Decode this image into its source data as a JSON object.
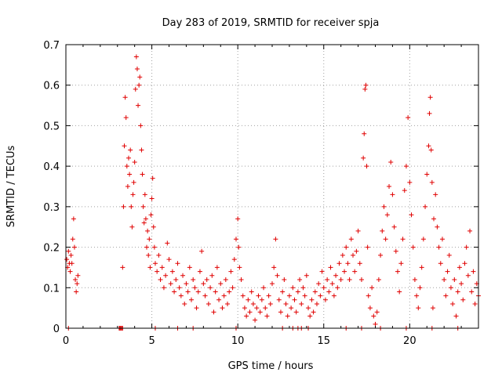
{
  "chart_data": {
    "type": "scatter",
    "title": "Day 283 of 2019, SRMTID for receiver spja",
    "xlabel": "GPS time / hours",
    "ylabel": "SRMTID / TECUs",
    "xlim": [
      0,
      24
    ],
    "ylim": [
      0,
      0.7
    ],
    "x_ticks": [
      0,
      5,
      10,
      15,
      20
    ],
    "x_tick_labels": [
      "0",
      "5",
      "10",
      "15",
      "20"
    ],
    "y_ticks": [
      0,
      0.1,
      0.2,
      0.3,
      0.4,
      0.5,
      0.6,
      0.7
    ],
    "y_tick_labels": [
      "0",
      "0.1",
      "0.2",
      "0.3",
      "0.4",
      "0.5",
      "0.6",
      "0.7"
    ],
    "grid": true,
    "marker": "+",
    "color": "#e00000",
    "series": [
      {
        "name": "SRMTID",
        "points": [
          [
            0.05,
            0.17
          ],
          [
            0.1,
            0.15
          ],
          [
            0.15,
            0.19
          ],
          [
            0.2,
            0.16
          ],
          [
            0.25,
            0.14
          ],
          [
            0.3,
            0.18
          ],
          [
            0.35,
            0.16
          ],
          [
            0.4,
            0.22
          ],
          [
            0.45,
            0.27
          ],
          [
            0.5,
            0.2
          ],
          [
            0.55,
            0.12
          ],
          [
            0.6,
            0.09
          ],
          [
            0.65,
            0.11
          ],
          [
            0.7,
            0.13
          ],
          [
            0.15,
            0
          ],
          [
            3.1,
            0
          ],
          [
            3.15,
            0
          ],
          [
            3.2,
            0
          ],
          [
            3.25,
            0
          ],
          [
            3.3,
            0
          ],
          [
            3.3,
            0.15
          ],
          [
            3.35,
            0.3
          ],
          [
            3.4,
            0.45
          ],
          [
            3.45,
            0.57
          ],
          [
            3.5,
            0.52
          ],
          [
            3.55,
            0.4
          ],
          [
            3.6,
            0.35
          ],
          [
            3.65,
            0.42
          ],
          [
            3.7,
            0.38
          ],
          [
            3.75,
            0.44
          ],
          [
            3.8,
            0.3
          ],
          [
            3.85,
            0.25
          ],
          [
            3.9,
            0.33
          ],
          [
            3.95,
            0.36
          ],
          [
            4.0,
            0.41
          ],
          [
            4.05,
            0.59
          ],
          [
            4.1,
            0.67
          ],
          [
            4.15,
            0.64
          ],
          [
            4.2,
            0.55
          ],
          [
            4.25,
            0.6
          ],
          [
            4.3,
            0.62
          ],
          [
            4.35,
            0.5
          ],
          [
            4.4,
            0.44
          ],
          [
            4.45,
            0.38
          ],
          [
            4.5,
            0.3
          ],
          [
            4.55,
            0.26
          ],
          [
            4.6,
            0.33
          ],
          [
            4.65,
            0.27
          ],
          [
            4.7,
            0.2
          ],
          [
            4.75,
            0.24
          ],
          [
            4.8,
            0.18
          ],
          [
            4.85,
            0.22
          ],
          [
            4.9,
            0.15
          ],
          [
            4.95,
            0.28
          ],
          [
            5.0,
            0.32
          ],
          [
            5.05,
            0.37
          ],
          [
            5.1,
            0.25
          ],
          [
            5.15,
            0.2
          ],
          [
            5.2,
            0.16
          ],
          [
            5.3,
            0.14
          ],
          [
            5.4,
            0.18
          ],
          [
            5.5,
            0.12
          ],
          [
            5.6,
            0.15
          ],
          [
            5.7,
            0.1
          ],
          [
            5.8,
            0.13
          ],
          [
            5.9,
            0.21
          ],
          [
            6.0,
            0.17
          ],
          [
            6.1,
            0.11
          ],
          [
            6.2,
            0.14
          ],
          [
            6.3,
            0.09
          ],
          [
            6.4,
            0.12
          ],
          [
            6.5,
            0.16
          ],
          [
            6.6,
            0.1
          ],
          [
            6.7,
            0.08
          ],
          [
            6.8,
            0.13
          ],
          [
            6.9,
            0.06
          ],
          [
            7.0,
            0.11
          ],
          [
            7.1,
            0.09
          ],
          [
            7.2,
            0.15
          ],
          [
            7.3,
            0.07
          ],
          [
            7.4,
            0.12
          ],
          [
            7.5,
            0.1
          ],
          [
            7.6,
            0.05
          ],
          [
            7.7,
            0.09
          ],
          [
            7.8,
            0.14
          ],
          [
            7.9,
            0.19
          ],
          [
            8.0,
            0.11
          ],
          [
            8.1,
            0.08
          ],
          [
            8.2,
            0.12
          ],
          [
            8.3,
            0.06
          ],
          [
            8.4,
            0.1
          ],
          [
            8.5,
            0.13
          ],
          [
            8.6,
            0.04
          ],
          [
            8.7,
            0.09
          ],
          [
            8.8,
            0.15
          ],
          [
            8.9,
            0.07
          ],
          [
            9.0,
            0.11
          ],
          [
            9.1,
            0.05
          ],
          [
            9.2,
            0.08
          ],
          [
            9.3,
            0.12
          ],
          [
            9.4,
            0.06
          ],
          [
            9.5,
            0.09
          ],
          [
            9.6,
            0.14
          ],
          [
            9.7,
            0.1
          ],
          [
            9.8,
            0.17
          ],
          [
            9.9,
            0.22
          ],
          [
            10.0,
            0.27
          ],
          [
            10.05,
            0.2
          ],
          [
            10.1,
            0.15
          ],
          [
            10.2,
            0.12
          ],
          [
            10.3,
            0.08
          ],
          [
            10.4,
            0.05
          ],
          [
            10.5,
            0.03
          ],
          [
            10.6,
            0.07
          ],
          [
            10.7,
            0.04
          ],
          [
            10.8,
            0.09
          ],
          [
            10.9,
            0.06
          ],
          [
            11.0,
            0.02
          ],
          [
            11.1,
            0.05
          ],
          [
            11.2,
            0.08
          ],
          [
            11.3,
            0.04
          ],
          [
            11.4,
            0.07
          ],
          [
            11.5,
            0.1
          ],
          [
            11.6,
            0.05
          ],
          [
            11.7,
            0.03
          ],
          [
            11.8,
            0.08
          ],
          [
            11.9,
            0.06
          ],
          [
            12.0,
            0.11
          ],
          [
            12.1,
            0.15
          ],
          [
            12.2,
            0.22
          ],
          [
            12.3,
            0.13
          ],
          [
            12.4,
            0.07
          ],
          [
            12.5,
            0.04
          ],
          [
            12.6,
            0.09
          ],
          [
            12.7,
            0.12
          ],
          [
            12.8,
            0.06
          ],
          [
            12.9,
            0.03
          ],
          [
            13.0,
            0.08
          ],
          [
            13.1,
            0.05
          ],
          [
            13.2,
            0.1
          ],
          [
            13.3,
            0.07
          ],
          [
            13.4,
            0.04
          ],
          [
            13.5,
            0.09
          ],
          [
            13.6,
            0.12
          ],
          [
            13.7,
            0.06
          ],
          [
            13.8,
            0.1
          ],
          [
            13.9,
            0.08
          ],
          [
            14.0,
            0.13
          ],
          [
            14.1,
            0.05
          ],
          [
            14.2,
            0.03
          ],
          [
            14.3,
            0.07
          ],
          [
            14.4,
            0.04
          ],
          [
            14.5,
            0.09
          ],
          [
            14.6,
            0.06
          ],
          [
            14.7,
            0.11
          ],
          [
            14.8,
            0.08
          ],
          [
            14.9,
            0.14
          ],
          [
            15.0,
            0.1
          ],
          [
            15.1,
            0.07
          ],
          [
            15.2,
            0.12
          ],
          [
            15.3,
            0.09
          ],
          [
            15.4,
            0.15
          ],
          [
            15.5,
            0.11
          ],
          [
            15.6,
            0.08
          ],
          [
            15.7,
            0.13
          ],
          [
            15.8,
            0.1
          ],
          [
            15.9,
            0.16
          ],
          [
            16.0,
            0.12
          ],
          [
            16.1,
            0.18
          ],
          [
            16.2,
            0.14
          ],
          [
            16.3,
            0.2
          ],
          [
            16.4,
            0.16
          ],
          [
            16.5,
            0.12
          ],
          [
            16.6,
            0.22
          ],
          [
            16.7,
            0.18
          ],
          [
            16.8,
            0.14
          ],
          [
            16.9,
            0.19
          ],
          [
            17.0,
            0.24
          ],
          [
            17.1,
            0.16
          ],
          [
            17.2,
            0.12
          ],
          [
            17.3,
            0.42
          ],
          [
            17.35,
            0.48
          ],
          [
            17.4,
            0.59
          ],
          [
            17.45,
            0.6
          ],
          [
            17.5,
            0.4
          ],
          [
            17.55,
            0.2
          ],
          [
            17.6,
            0.08
          ],
          [
            17.7,
            0.05
          ],
          [
            17.8,
            0.1
          ],
          [
            17.9,
            0.03
          ],
          [
            18.0,
            0.01
          ],
          [
            18.1,
            0.04
          ],
          [
            18.2,
            0.12
          ],
          [
            18.3,
            0.18
          ],
          [
            18.4,
            0.24
          ],
          [
            18.5,
            0.3
          ],
          [
            18.6,
            0.22
          ],
          [
            18.7,
            0.28
          ],
          [
            18.8,
            0.35
          ],
          [
            18.9,
            0.41
          ],
          [
            19.0,
            0.33
          ],
          [
            19.1,
            0.25
          ],
          [
            19.2,
            0.19
          ],
          [
            19.3,
            0.14
          ],
          [
            19.4,
            0.09
          ],
          [
            19.5,
            0.16
          ],
          [
            19.6,
            0.22
          ],
          [
            19.7,
            0.34
          ],
          [
            19.8,
            0.4
          ],
          [
            19.9,
            0.52
          ],
          [
            20.0,
            0.36
          ],
          [
            20.1,
            0.28
          ],
          [
            20.2,
            0.2
          ],
          [
            20.3,
            0.12
          ],
          [
            20.4,
            0.08
          ],
          [
            20.5,
            0.05
          ],
          [
            20.6,
            0.1
          ],
          [
            20.7,
            0.15
          ],
          [
            20.8,
            0.22
          ],
          [
            20.9,
            0.3
          ],
          [
            21.0,
            0.38
          ],
          [
            21.1,
            0.45
          ],
          [
            21.15,
            0.53
          ],
          [
            21.2,
            0.57
          ],
          [
            21.25,
            0.44
          ],
          [
            21.3,
            0.36
          ],
          [
            21.35,
            0.05
          ],
          [
            21.4,
            0.27
          ],
          [
            21.5,
            0.33
          ],
          [
            21.6,
            0.25
          ],
          [
            21.7,
            0.2
          ],
          [
            21.8,
            0.16
          ],
          [
            21.9,
            0.22
          ],
          [
            22.0,
            0.12
          ],
          [
            22.1,
            0.08
          ],
          [
            22.2,
            0.14
          ],
          [
            22.3,
            0.18
          ],
          [
            22.4,
            0.1
          ],
          [
            22.5,
            0.06
          ],
          [
            22.6,
            0.12
          ],
          [
            22.7,
            0.03
          ],
          [
            22.8,
            0.09
          ],
          [
            22.9,
            0.15
          ],
          [
            23.0,
            0.11
          ],
          [
            23.1,
            0.07
          ],
          [
            23.2,
            0.16
          ],
          [
            23.3,
            0.2
          ],
          [
            23.4,
            0.13
          ],
          [
            23.5,
            0.24
          ],
          [
            23.6,
            0.09
          ],
          [
            23.7,
            0.14
          ],
          [
            23.8,
            0.06
          ],
          [
            23.9,
            0.11
          ],
          [
            24.0,
            0.08
          ],
          [
            5.2,
            0
          ],
          [
            6.5,
            0
          ],
          [
            7.4,
            0
          ],
          [
            9.9,
            0
          ],
          [
            12.6,
            0
          ],
          [
            13.2,
            0
          ],
          [
            13.5,
            0
          ],
          [
            13.7,
            0
          ],
          [
            14.1,
            0
          ],
          [
            16.3,
            0
          ],
          [
            17.2,
            0
          ],
          [
            18.3,
            0
          ],
          [
            19.8,
            0
          ],
          [
            21.3,
            0
          ],
          [
            22.8,
            0
          ]
        ]
      }
    ]
  }
}
